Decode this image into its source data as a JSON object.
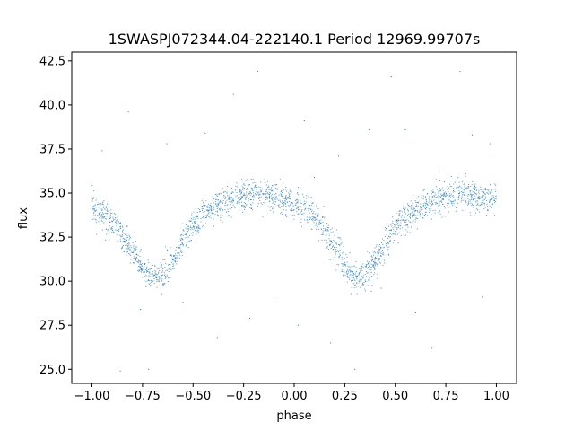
{
  "chart_data": {
    "type": "scatter",
    "title": "1SWASPJ072344.04-222140.1 Period 12969.99707s",
    "xlabel": "phase",
    "ylabel": "flux",
    "xlim": [
      -1.1,
      1.1
    ],
    "ylim": [
      24.2,
      43.0
    ],
    "x_ticks": [
      "−1.00",
      "−0.75",
      "−0.50",
      "−0.25",
      "0.00",
      "0.25",
      "0.50",
      "0.75",
      "1.00"
    ],
    "x_tick_values": [
      -1.0,
      -0.75,
      -0.5,
      -0.25,
      0.0,
      0.25,
      0.5,
      0.75,
      1.0
    ],
    "y_ticks": [
      "25.0",
      "27.5",
      "30.0",
      "32.5",
      "35.0",
      "37.5",
      "40.0",
      "42.5"
    ],
    "y_tick_values": [
      25.0,
      27.5,
      30.0,
      32.5,
      35.0,
      37.5,
      40.0,
      42.5
    ],
    "grid": false,
    "legend": "none",
    "marker_color": "#1f77b4",
    "series": [
      {
        "x": [
          -1.0,
          -0.95,
          -0.9,
          -0.85,
          -0.8,
          -0.75,
          -0.7,
          -0.65,
          -0.6,
          -0.55,
          -0.5,
          -0.45,
          -0.4,
          -0.35,
          -0.3,
          -0.25,
          -0.2,
          -0.15,
          -0.1,
          -0.05,
          0.0,
          0.05,
          0.1,
          0.15,
          0.2,
          0.25,
          0.3,
          0.35,
          0.4,
          0.45,
          0.5,
          0.55,
          0.6,
          0.65,
          0.7,
          0.75,
          0.8,
          0.85,
          0.9,
          0.95,
          1.0
        ],
        "y": [
          34.3,
          33.9,
          33.4,
          32.6,
          31.7,
          30.7,
          30.2,
          30.4,
          31.2,
          32.2,
          33.1,
          33.7,
          34.1,
          34.4,
          34.7,
          34.8,
          34.9,
          34.9,
          34.8,
          34.6,
          34.4,
          34.1,
          33.6,
          32.9,
          32.0,
          30.9,
          30.3,
          30.3,
          31.1,
          32.1,
          33.0,
          33.6,
          34.0,
          34.3,
          34.6,
          34.8,
          34.9,
          34.9,
          34.8,
          34.7,
          34.6
        ]
      }
    ],
    "outliers": [
      [
        -0.95,
        37.4
      ],
      [
        -0.86,
        24.9
      ],
      [
        -0.82,
        39.6
      ],
      [
        -0.76,
        28.4
      ],
      [
        -0.72,
        25.0
      ],
      [
        -0.63,
        37.8
      ],
      [
        -0.55,
        28.8
      ],
      [
        -0.44,
        38.4
      ],
      [
        -0.38,
        26.8
      ],
      [
        -0.3,
        40.6
      ],
      [
        -0.22,
        27.9
      ],
      [
        -0.18,
        41.9
      ],
      [
        -0.1,
        29.0
      ],
      [
        0.02,
        27.5
      ],
      [
        0.1,
        35.9
      ],
      [
        0.18,
        26.5
      ],
      [
        0.22,
        37.1
      ],
      [
        0.3,
        25.0
      ],
      [
        0.37,
        38.6
      ],
      [
        0.43,
        29.6
      ],
      [
        0.48,
        41.6
      ],
      [
        0.55,
        38.6
      ],
      [
        0.6,
        28.2
      ],
      [
        0.68,
        26.2
      ],
      [
        0.72,
        36.2
      ],
      [
        0.82,
        41.9
      ],
      [
        0.88,
        38.3
      ],
      [
        0.93,
        29.1
      ],
      [
        0.97,
        37.8
      ],
      [
        0.05,
        39.1
      ]
    ]
  }
}
